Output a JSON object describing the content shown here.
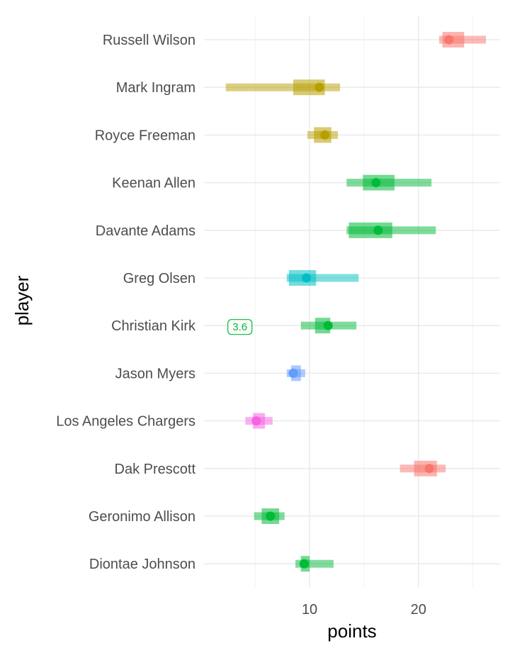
{
  "chart_data": {
    "type": "interval",
    "xlabel": "points",
    "ylabel": "player",
    "xlim": [
      0.3,
      27.5
    ],
    "x_ticks": [
      10,
      20
    ],
    "x_tick_labels": [
      "10",
      "20"
    ],
    "x_minor_ticks": [
      5,
      15,
      25
    ],
    "grid": true,
    "legend": "none",
    "palette": {
      "red": "#F8766D",
      "olive": "#B79F00",
      "green": "#00BA38",
      "teal": "#00BFC4",
      "blue": "#619CFF",
      "pink": "#F564E3"
    },
    "players": [
      {
        "name": "Russell Wilson",
        "color": "#F8766D",
        "median": 22.8,
        "inner": [
          22.2,
          24.2
        ],
        "outer": [
          21.9,
          26.2
        ]
      },
      {
        "name": "Mark Ingram",
        "color": "#B79F00",
        "median": 10.9,
        "inner": [
          8.5,
          11.4
        ],
        "outer": [
          2.3,
          12.8
        ]
      },
      {
        "name": "Royce Freeman",
        "color": "#B79F00",
        "median": 11.4,
        "inner": [
          10.4,
          12.0
        ],
        "outer": [
          9.8,
          12.6
        ]
      },
      {
        "name": "Keenan Allen",
        "color": "#00BA38",
        "median": 16.1,
        "inner": [
          14.9,
          17.8
        ],
        "outer": [
          13.4,
          21.2
        ]
      },
      {
        "name": "Davante Adams",
        "color": "#00BA38",
        "median": 16.3,
        "inner": [
          13.6,
          17.6
        ],
        "outer": [
          13.4,
          21.6
        ]
      },
      {
        "name": "Greg Olsen",
        "color": "#00BFC4",
        "median": 9.7,
        "inner": [
          8.1,
          10.6
        ],
        "outer": [
          7.9,
          14.5
        ]
      },
      {
        "name": "Christian Kirk",
        "color": "#00BA38",
        "median": 11.7,
        "inner": [
          10.5,
          11.9
        ],
        "outer": [
          9.2,
          14.3
        ]
      },
      {
        "name": "Jason Myers",
        "color": "#619CFF",
        "median": 8.5,
        "inner": [
          8.3,
          9.2
        ],
        "outer": [
          7.9,
          9.6
        ]
      },
      {
        "name": "Los Angeles Chargers",
        "color": "#F564E3",
        "median": 5.1,
        "inner": [
          4.8,
          5.9
        ],
        "outer": [
          4.1,
          6.6
        ]
      },
      {
        "name": "Dak Prescott",
        "color": "#F8766D",
        "median": 21.0,
        "inner": [
          19.6,
          21.7
        ],
        "outer": [
          18.3,
          22.5
        ]
      },
      {
        "name": "Geronimo Allison",
        "color": "#00BA38",
        "median": 6.4,
        "inner": [
          5.6,
          7.2
        ],
        "outer": [
          4.9,
          7.7
        ]
      },
      {
        "name": "Diontae Johnson",
        "color": "#00BA38",
        "median": 9.5,
        "inner": [
          9.2,
          10.0
        ],
        "outer": [
          8.7,
          12.2
        ]
      }
    ],
    "annotations": [
      {
        "player": "Christian Kirk",
        "text": "3.6",
        "x": 3.6,
        "color": "#00BA38"
      }
    ]
  }
}
